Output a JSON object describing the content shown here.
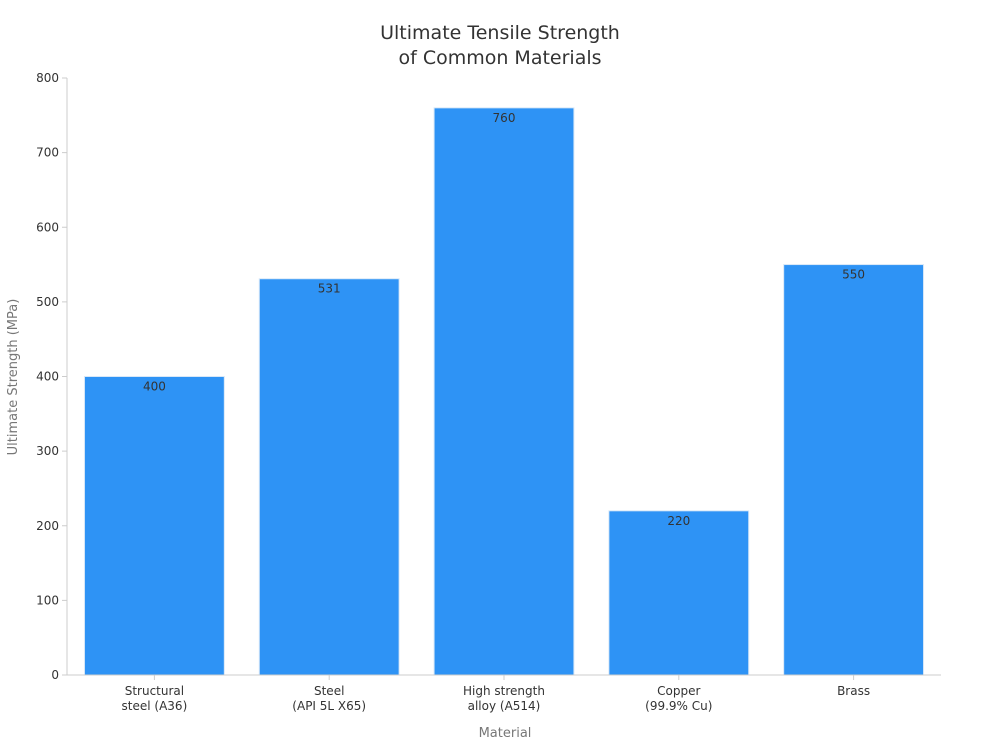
{
  "chart_data": {
    "type": "bar",
    "title_lines": [
      "Ultimate Tensile Strength",
      "of Common Materials"
    ],
    "xlabel": "Material",
    "ylabel": "Ultimate Strength (MPa)",
    "categories": [
      [
        "Structural",
        "steel (A36)"
      ],
      [
        "Steel",
        "(API 5L X65)"
      ],
      [
        "High strength",
        "alloy (A514)"
      ],
      [
        "Copper",
        "(99.9% Cu)"
      ],
      [
        "Brass"
      ]
    ],
    "values": [
      400,
      531,
      760,
      220,
      550
    ],
    "value_labels": [
      "400",
      "531",
      "760",
      "220",
      "550"
    ],
    "ylim": [
      0,
      800
    ],
    "yticks": [
      0,
      100,
      200,
      300,
      400,
      500,
      600,
      700,
      800
    ],
    "bar_color": "#2e93f5",
    "grid": false,
    "legend": "none"
  }
}
